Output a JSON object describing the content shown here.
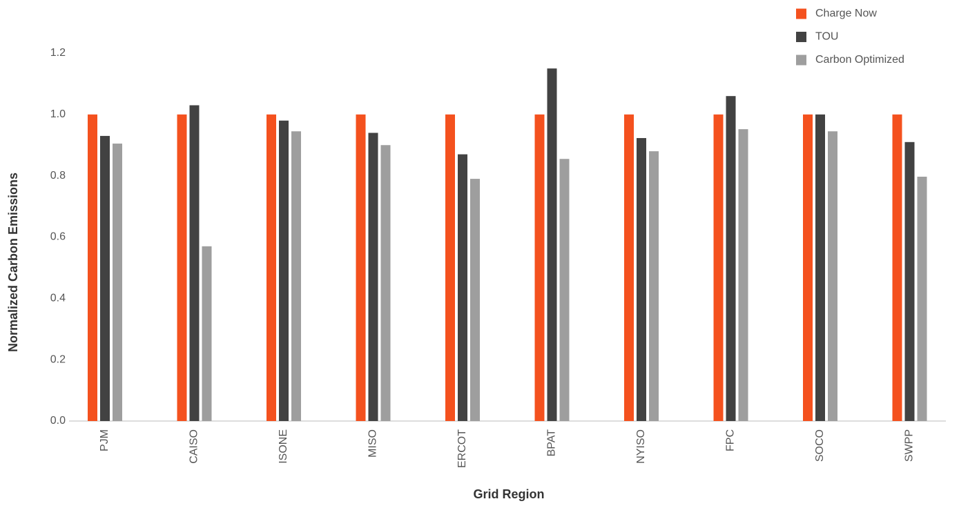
{
  "chart_data": {
    "type": "bar",
    "x_label": "Grid Region",
    "y_label": "Normalized Carbon Emissions",
    "categories": [
      "PJM",
      "CAISO",
      "ISONE",
      "MISO",
      "ERCOT",
      "BPAT",
      "NYISO",
      "FPC",
      "SOCO",
      "SWPP"
    ],
    "series": [
      {
        "name": "Charge Now",
        "color": "#f4511e",
        "values": [
          1.0,
          1.0,
          1.0,
          1.0,
          1.0,
          1.0,
          1.0,
          1.0,
          1.0,
          1.0
        ]
      },
      {
        "name": "TOU",
        "color": "#424242",
        "values": [
          0.93,
          1.03,
          0.98,
          0.94,
          0.87,
          1.15,
          0.923,
          1.06,
          1.0,
          0.91
        ]
      },
      {
        "name": "Carbon Optimized",
        "color": "#9e9e9e",
        "values": [
          0.905,
          0.57,
          0.945,
          0.9,
          0.79,
          0.855,
          0.88,
          0.952,
          0.945,
          0.797
        ]
      }
    ],
    "ylim": [
      0,
      1.2
    ],
    "yticks": [
      {
        "value": 0,
        "label": "0.0"
      },
      0.2,
      0.4,
      0.6,
      0.8,
      {
        "value": 1,
        "label": "1.0"
      },
      1.2
    ],
    "legend": "top-right"
  }
}
